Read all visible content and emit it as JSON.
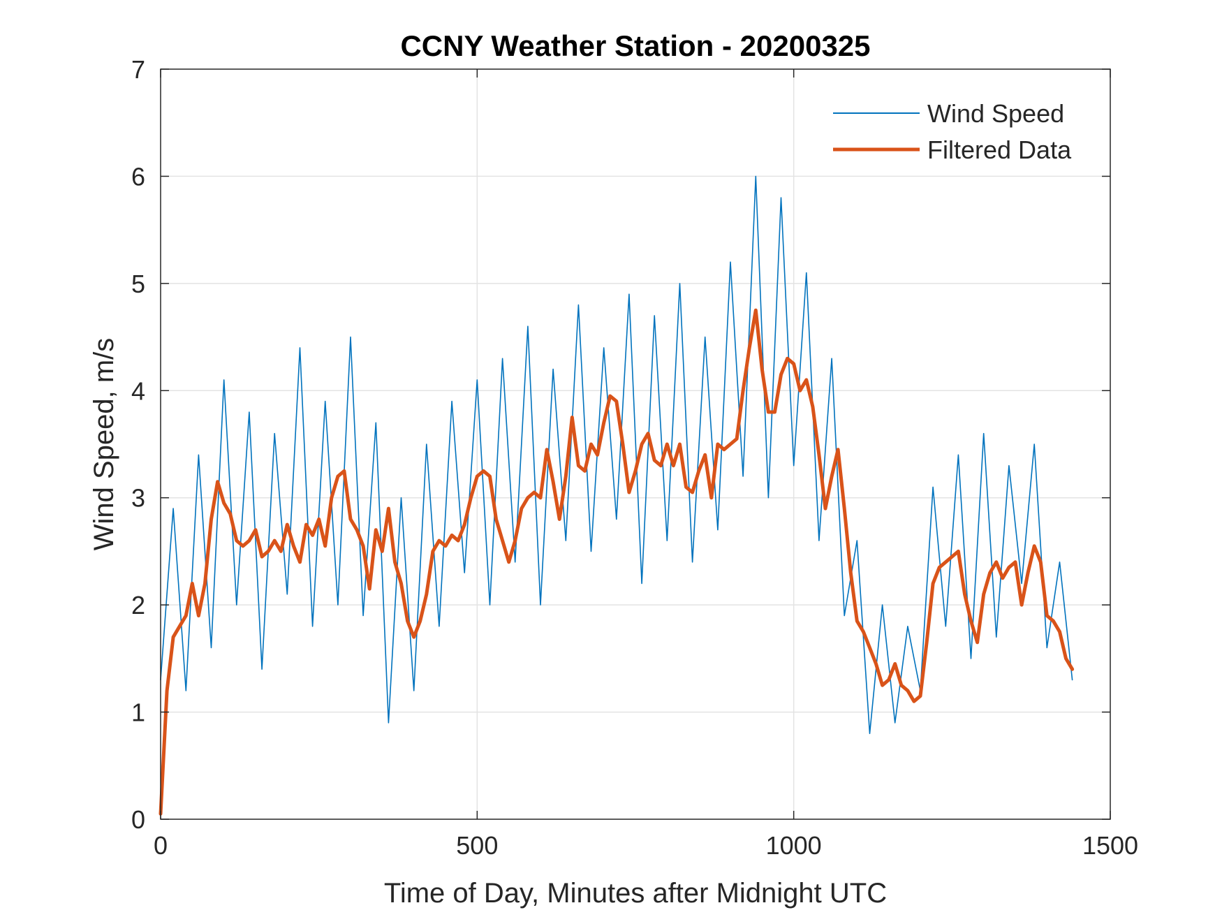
{
  "chart_data": {
    "type": "line",
    "title": "CCNY Weather Station - 20200325",
    "xlabel": "Time of Day, Minutes after Midnight UTC",
    "ylabel": "Wind Speed, m/s",
    "xlim": [
      0,
      1500
    ],
    "ylim": [
      0,
      7
    ],
    "xticks": [
      0,
      500,
      1000,
      1500
    ],
    "xtick_labels": [
      "0",
      "500",
      "1000",
      "1500"
    ],
    "yticks": [
      0,
      1,
      2,
      3,
      4,
      5,
      6,
      7
    ],
    "ytick_labels": [
      "0",
      "1",
      "2",
      "3",
      "4",
      "5",
      "6",
      "7"
    ],
    "grid": true,
    "legend_position": "top-right",
    "series": [
      {
        "name": "Wind Speed",
        "color": "#0072BD",
        "style": "thin",
        "x": [
          0,
          20,
          40,
          60,
          80,
          100,
          120,
          140,
          160,
          180,
          200,
          220,
          240,
          260,
          280,
          300,
          320,
          340,
          360,
          380,
          400,
          420,
          440,
          460,
          480,
          500,
          520,
          540,
          560,
          580,
          600,
          620,
          640,
          660,
          680,
          700,
          720,
          740,
          760,
          780,
          800,
          820,
          840,
          860,
          880,
          900,
          920,
          940,
          960,
          980,
          1000,
          1020,
          1040,
          1060,
          1080,
          1100,
          1120,
          1140,
          1160,
          1180,
          1200,
          1220,
          1240,
          1260,
          1280,
          1300,
          1320,
          1340,
          1360,
          1380,
          1400,
          1420,
          1440
        ],
        "y": [
          1.3,
          2.9,
          1.2,
          3.4,
          1.6,
          4.1,
          2.0,
          3.8,
          1.4,
          3.6,
          2.1,
          4.4,
          1.8,
          3.9,
          2.0,
          4.5,
          1.9,
          3.7,
          0.9,
          3.0,
          1.2,
          3.5,
          1.8,
          3.9,
          2.3,
          4.1,
          2.0,
          4.3,
          2.4,
          4.6,
          2.0,
          4.2,
          2.6,
          4.8,
          2.5,
          4.4,
          2.8,
          4.9,
          2.2,
          4.7,
          2.6,
          5.0,
          2.4,
          4.5,
          2.7,
          5.2,
          3.2,
          6.0,
          3.0,
          5.8,
          3.3,
          5.1,
          2.6,
          4.3,
          1.9,
          2.6,
          0.8,
          2.0,
          0.9,
          1.8,
          1.2,
          3.1,
          1.8,
          3.4,
          1.5,
          3.6,
          1.7,
          3.3,
          2.2,
          3.5,
          1.6,
          2.4,
          1.3
        ]
      },
      {
        "name": "Filtered Data",
        "color": "#D95319",
        "style": "thick",
        "x": [
          0,
          10,
          20,
          30,
          40,
          50,
          60,
          70,
          80,
          90,
          100,
          110,
          120,
          130,
          140,
          150,
          160,
          170,
          180,
          190,
          200,
          210,
          220,
          230,
          240,
          250,
          260,
          270,
          280,
          290,
          300,
          310,
          320,
          330,
          340,
          350,
          360,
          370,
          380,
          390,
          400,
          410,
          420,
          430,
          440,
          450,
          460,
          470,
          480,
          490,
          500,
          510,
          520,
          530,
          540,
          550,
          560,
          570,
          580,
          590,
          600,
          610,
          620,
          630,
          640,
          650,
          660,
          670,
          680,
          690,
          700,
          710,
          720,
          730,
          740,
          750,
          760,
          770,
          780,
          790,
          800,
          810,
          820,
          830,
          840,
          850,
          860,
          870,
          880,
          890,
          900,
          910,
          920,
          930,
          940,
          950,
          960,
          970,
          980,
          990,
          1000,
          1010,
          1020,
          1030,
          1040,
          1050,
          1060,
          1070,
          1080,
          1090,
          1100,
          1110,
          1120,
          1130,
          1140,
          1150,
          1160,
          1170,
          1180,
          1190,
          1200,
          1210,
          1220,
          1230,
          1240,
          1250,
          1260,
          1270,
          1280,
          1290,
          1300,
          1310,
          1320,
          1330,
          1340,
          1350,
          1360,
          1370,
          1380,
          1390,
          1400,
          1410,
          1420,
          1430,
          1440
        ],
        "y": [
          0.05,
          1.2,
          1.7,
          1.8,
          1.9,
          2.2,
          1.9,
          2.2,
          2.8,
          3.15,
          2.95,
          2.85,
          2.6,
          2.55,
          2.6,
          2.7,
          2.45,
          2.5,
          2.6,
          2.5,
          2.75,
          2.55,
          2.4,
          2.75,
          2.65,
          2.8,
          2.55,
          3.0,
          3.2,
          3.25,
          2.8,
          2.7,
          2.55,
          2.15,
          2.7,
          2.5,
          2.9,
          2.4,
          2.2,
          1.85,
          1.7,
          1.85,
          2.1,
          2.5,
          2.6,
          2.55,
          2.65,
          2.6,
          2.75,
          3.0,
          3.2,
          3.25,
          3.2,
          2.8,
          2.6,
          2.4,
          2.6,
          2.9,
          3.0,
          3.05,
          3.0,
          3.45,
          3.15,
          2.8,
          3.2,
          3.75,
          3.3,
          3.25,
          3.5,
          3.4,
          3.7,
          3.95,
          3.9,
          3.5,
          3.05,
          3.25,
          3.5,
          3.6,
          3.35,
          3.3,
          3.5,
          3.3,
          3.5,
          3.1,
          3.05,
          3.25,
          3.4,
          3.0,
          3.5,
          3.45,
          3.5,
          3.55,
          4.0,
          4.4,
          4.75,
          4.2,
          3.8,
          3.8,
          4.15,
          4.3,
          4.25,
          4.0,
          4.1,
          3.85,
          3.4,
          2.9,
          3.2,
          3.45,
          2.9,
          2.3,
          1.85,
          1.75,
          1.6,
          1.45,
          1.25,
          1.3,
          1.45,
          1.25,
          1.2,
          1.1,
          1.15,
          1.65,
          2.2,
          2.35,
          2.4,
          2.45,
          2.5,
          2.1,
          1.85,
          1.65,
          2.1,
          2.3,
          2.4,
          2.25,
          2.35,
          2.4,
          2.0,
          2.3,
          2.55,
          2.4,
          1.9,
          1.85,
          1.75,
          1.5,
          1.4
        ]
      }
    ]
  }
}
